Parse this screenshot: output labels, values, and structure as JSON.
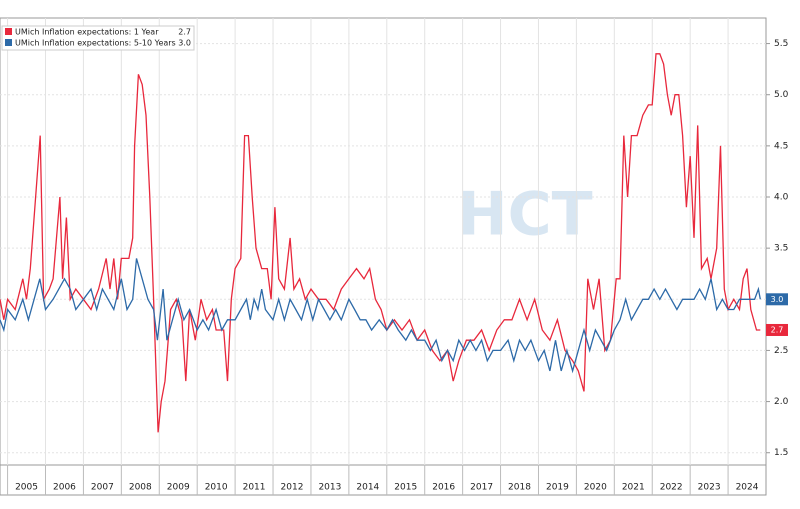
{
  "chart_data": {
    "type": "line",
    "watermark": "HCT",
    "xlim": [
      2004.8,
      2025.0
    ],
    "ylim": [
      1.38,
      5.75
    ],
    "yticks": [
      1.5,
      {
        "value": 2,
        "label": "2.0"
      },
      2.5,
      {
        "value": 3,
        "label": "3.0"
      },
      3.5,
      {
        "value": 4,
        "label": "4.0"
      },
      4.5,
      {
        "value": 5,
        "label": "5.0"
      },
      5.5
    ],
    "xticks": [
      {
        "value": 2005.5,
        "label": "2005"
      },
      {
        "value": 2006.5,
        "label": "2006"
      },
      {
        "value": 2007.5,
        "label": "2007"
      },
      {
        "value": 2008.5,
        "label": "2008"
      },
      {
        "value": 2009.5,
        "label": "2009"
      },
      {
        "value": 2010.5,
        "label": "2010"
      },
      {
        "value": 2011.5,
        "label": "2011"
      },
      {
        "value": 2012.5,
        "label": "2012"
      },
      {
        "value": 2013.5,
        "label": "2013"
      },
      {
        "value": 2014.5,
        "label": "2014"
      },
      {
        "value": 2015.5,
        "label": "2015"
      },
      {
        "value": 2016.5,
        "label": "2016"
      },
      {
        "value": 2017.5,
        "label": "2017"
      },
      {
        "value": 2018.5,
        "label": "2018"
      },
      {
        "value": 2019.5,
        "label": "2019"
      },
      {
        "value": 2020.5,
        "label": "2020"
      },
      {
        "value": 2021.5,
        "label": "2021"
      },
      {
        "value": 2022.5,
        "label": "2022"
      },
      {
        "value": 2023.5,
        "label": "2023"
      },
      {
        "value": 2024.5,
        "label": "2024"
      }
    ],
    "grid": true,
    "legend": "top-left",
    "series": [
      {
        "name": "UMich Inflation expectations: 1 Year",
        "color": "#e8283c",
        "last_label": "2.7",
        "x": [
          2004.8,
          2004.9,
          2005.0,
          2005.2,
          2005.4,
          2005.5,
          2005.6,
          2005.86,
          2005.95,
          2006.1,
          2006.2,
          2006.38,
          2006.45,
          2006.55,
          2006.65,
          2006.8,
          2007.0,
          2007.2,
          2007.4,
          2007.6,
          2007.7,
          2007.8,
          2007.9,
          2008.0,
          2008.2,
          2008.3,
          2008.35,
          2008.45,
          2008.55,
          2008.65,
          2008.75,
          2008.85,
          2008.97,
          2009.05,
          2009.15,
          2009.3,
          2009.45,
          2009.6,
          2009.7,
          2009.8,
          2009.95,
          2010.1,
          2010.25,
          2010.4,
          2010.5,
          2010.7,
          2010.8,
          2010.9,
          2011.0,
          2011.15,
          2011.25,
          2011.35,
          2011.45,
          2011.55,
          2011.7,
          2011.85,
          2011.95,
          2012.05,
          2012.15,
          2012.3,
          2012.45,
          2012.55,
          2012.7,
          2012.85,
          2013.0,
          2013.2,
          2013.4,
          2013.6,
          2013.8,
          2014.0,
          2014.2,
          2014.4,
          2014.55,
          2014.7,
          2014.85,
          2015.0,
          2015.2,
          2015.4,
          2015.6,
          2015.8,
          2016.0,
          2016.2,
          2016.4,
          2016.6,
          2016.75,
          2016.9,
          2017.1,
          2017.3,
          2017.5,
          2017.7,
          2017.9,
          2018.1,
          2018.3,
          2018.5,
          2018.7,
          2018.9,
          2019.1,
          2019.3,
          2019.5,
          2019.7,
          2019.9,
          2020.05,
          2020.2,
          2020.3,
          2020.45,
          2020.6,
          2020.75,
          2020.9,
          2021.05,
          2021.15,
          2021.25,
          2021.35,
          2021.45,
          2021.6,
          2021.75,
          2021.9,
          2022.0,
          2022.1,
          2022.2,
          2022.3,
          2022.4,
          2022.5,
          2022.6,
          2022.7,
          2022.8,
          2022.9,
          2023.0,
          2023.1,
          2023.2,
          2023.3,
          2023.45,
          2023.55,
          2023.7,
          2023.8,
          2023.9,
          2024.0,
          2024.15,
          2024.3,
          2024.4,
          2024.5,
          2024.6,
          2024.75,
          2024.85
        ],
        "values": [
          3.0,
          2.8,
          3.0,
          2.9,
          3.2,
          3.0,
          3.3,
          4.6,
          3.0,
          3.1,
          3.2,
          4.0,
          3.2,
          3.8,
          3.0,
          3.1,
          3.0,
          2.9,
          3.1,
          3.4,
          3.1,
          3.4,
          3.0,
          3.4,
          3.4,
          3.6,
          4.5,
          5.2,
          5.1,
          4.8,
          4.0,
          3.0,
          1.7,
          2.0,
          2.2,
          2.9,
          3.0,
          2.8,
          2.2,
          2.9,
          2.6,
          3.0,
          2.8,
          2.9,
          2.7,
          2.7,
          2.2,
          3.0,
          3.3,
          3.4,
          4.6,
          4.6,
          4.0,
          3.5,
          3.3,
          3.3,
          3.0,
          3.9,
          3.2,
          3.1,
          3.6,
          3.1,
          3.2,
          3.0,
          3.1,
          3.0,
          3.0,
          2.9,
          3.1,
          3.2,
          3.3,
          3.2,
          3.3,
          3.0,
          2.9,
          2.7,
          2.8,
          2.7,
          2.8,
          2.6,
          2.7,
          2.5,
          2.4,
          2.5,
          2.2,
          2.4,
          2.6,
          2.6,
          2.7,
          2.5,
          2.7,
          2.8,
          2.8,
          3.0,
          2.8,
          3.0,
          2.7,
          2.6,
          2.8,
          2.5,
          2.4,
          2.3,
          2.1,
          3.2,
          2.9,
          3.2,
          2.5,
          2.6,
          3.2,
          3.2,
          4.6,
          4.0,
          4.6,
          4.6,
          4.8,
          4.9,
          4.9,
          5.4,
          5.4,
          5.3,
          5.0,
          4.8,
          5.0,
          5.0,
          4.6,
          3.9,
          4.4,
          3.6,
          4.7,
          3.3,
          3.4,
          3.2,
          3.5,
          4.5,
          3.1,
          2.9,
          3.0,
          2.9,
          3.2,
          3.3,
          2.9,
          2.7,
          2.7
        ]
      },
      {
        "name": "UMich Inflation expectations: 5-10 Years",
        "color": "#2d6aa8",
        "last_label": "3.0",
        "x": [
          2004.8,
          2004.9,
          2005.0,
          2005.2,
          2005.4,
          2005.55,
          2005.7,
          2005.85,
          2006.0,
          2006.2,
          2006.35,
          2006.5,
          2006.65,
          2006.8,
          2007.0,
          2007.2,
          2007.35,
          2007.5,
          2007.65,
          2007.8,
          2008.0,
          2008.15,
          2008.3,
          2008.4,
          2008.55,
          2008.7,
          2008.85,
          2008.95,
          2009.1,
          2009.2,
          2009.35,
          2009.5,
          2009.65,
          2009.8,
          2010.0,
          2010.15,
          2010.3,
          2010.5,
          2010.65,
          2010.8,
          2011.0,
          2011.15,
          2011.3,
          2011.4,
          2011.5,
          2011.6,
          2011.7,
          2011.8,
          2012.0,
          2012.15,
          2012.3,
          2012.45,
          2012.6,
          2012.75,
          2012.9,
          2013.05,
          2013.2,
          2013.35,
          2013.5,
          2013.65,
          2013.8,
          2014.0,
          2014.15,
          2014.3,
          2014.45,
          2014.6,
          2014.8,
          2015.0,
          2015.15,
          2015.3,
          2015.5,
          2015.65,
          2015.8,
          2016.0,
          2016.15,
          2016.3,
          2016.45,
          2016.6,
          2016.75,
          2016.9,
          2017.05,
          2017.2,
          2017.35,
          2017.5,
          2017.65,
          2017.8,
          2018.0,
          2018.2,
          2018.35,
          2018.5,
          2018.65,
          2018.8,
          2019.0,
          2019.15,
          2019.3,
          2019.45,
          2019.6,
          2019.75,
          2019.9,
          2020.05,
          2020.2,
          2020.35,
          2020.5,
          2020.65,
          2020.8,
          2021.0,
          2021.15,
          2021.3,
          2021.45,
          2021.6,
          2021.75,
          2021.9,
          2022.05,
          2022.2,
          2022.35,
          2022.5,
          2022.65,
          2022.8,
          2022.95,
          2023.1,
          2023.25,
          2023.4,
          2023.55,
          2023.7,
          2023.85,
          2024.0,
          2024.15,
          2024.3,
          2024.45,
          2024.6,
          2024.7,
          2024.8,
          2024.85
        ],
        "values": [
          2.8,
          2.7,
          2.9,
          2.8,
          3.0,
          2.8,
          3.0,
          3.2,
          2.9,
          3.0,
          3.1,
          3.2,
          3.1,
          2.9,
          3.0,
          3.1,
          2.9,
          3.1,
          3.0,
          2.9,
          3.2,
          2.9,
          3.0,
          3.4,
          3.2,
          3.0,
          2.9,
          2.6,
          3.1,
          2.6,
          2.8,
          3.0,
          2.8,
          2.9,
          2.7,
          2.8,
          2.7,
          2.9,
          2.7,
          2.8,
          2.8,
          2.9,
          3.0,
          2.8,
          3.0,
          2.9,
          3.1,
          2.9,
          2.8,
          3.0,
          2.8,
          3.0,
          2.9,
          2.8,
          3.0,
          2.8,
          3.0,
          2.9,
          2.8,
          2.9,
          2.8,
          3.0,
          2.9,
          2.8,
          2.8,
          2.7,
          2.8,
          2.7,
          2.8,
          2.7,
          2.6,
          2.7,
          2.6,
          2.6,
          2.5,
          2.6,
          2.4,
          2.5,
          2.4,
          2.6,
          2.5,
          2.6,
          2.5,
          2.6,
          2.4,
          2.5,
          2.5,
          2.6,
          2.4,
          2.6,
          2.5,
          2.6,
          2.4,
          2.5,
          2.3,
          2.6,
          2.3,
          2.5,
          2.3,
          2.5,
          2.7,
          2.5,
          2.7,
          2.6,
          2.5,
          2.7,
          2.8,
          3.0,
          2.8,
          2.9,
          3.0,
          3.0,
          3.1,
          3.0,
          3.1,
          3.0,
          2.9,
          3.0,
          3.0,
          3.0,
          3.1,
          3.0,
          3.2,
          2.9,
          3.0,
          2.9,
          2.9,
          3.0,
          3.0,
          3.0,
          3.0,
          3.1,
          3.0
        ]
      }
    ]
  }
}
